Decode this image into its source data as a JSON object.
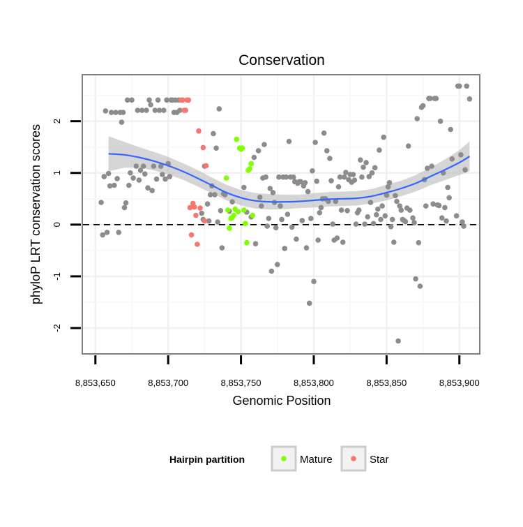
{
  "chart_data": {
    "type": "scatter",
    "title": "Conservation",
    "xlabel": "Genomic Position",
    "ylabel": "phyloP LRT conservation scores",
    "xlim": [
      8853641,
      8853914
    ],
    "ylim": [
      -2.5,
      2.9
    ],
    "x_ticks": [
      8853650,
      8853700,
      8853750,
      8853800,
      8853850,
      8853900
    ],
    "x_tick_labels": [
      "8,853,650",
      "8,853,700",
      "8,853,750",
      "8,853,800",
      "8,853,850",
      "8,853,900"
    ],
    "y_ticks": [
      -2,
      -1,
      0,
      1,
      2
    ],
    "y_tick_labels": [
      "-2",
      "-1",
      "0",
      "1",
      "2"
    ],
    "reference_line": {
      "y": 0,
      "style": "dashed"
    },
    "legend": {
      "title": "Hairpin partition",
      "position": "bottom",
      "entries": [
        {
          "label": "Mature",
          "color": "#7fff00"
        },
        {
          "label": "Star",
          "color": "#f8766d"
        }
      ]
    },
    "colors": {
      "other": "#8c8c8c",
      "mature": "#7fff00",
      "star": "#f8766d",
      "smooth": "#3366ff",
      "ribbon": "#bfbfbf"
    },
    "series": [
      {
        "name": "Other",
        "points": [
          [
            8853654,
            0.43
          ],
          [
            8853655,
            -0.2
          ],
          [
            8853656,
            0.93
          ],
          [
            8853657,
            2.2
          ],
          [
            8853658,
            -0.15
          ],
          [
            8853659,
            0.99
          ],
          [
            8853660,
            0.75
          ],
          [
            8853661,
            2.17
          ],
          [
            8853663,
            0.76
          ],
          [
            8853664,
            2.17
          ],
          [
            8853665,
            0.89
          ],
          [
            8853666,
            -0.15
          ],
          [
            8853667,
            2.17
          ],
          [
            8853668,
            1.98
          ],
          [
            8853669,
            2.17
          ],
          [
            8853670,
            0.33
          ],
          [
            8853671,
            0.42
          ],
          [
            8853672,
            2.41
          ],
          [
            8853673,
            0.76
          ],
          [
            8853674,
            1.0
          ],
          [
            8853675,
            2.41
          ],
          [
            8853676,
            0.9
          ],
          [
            8853678,
            1.13
          ],
          [
            8853679,
            2.21
          ],
          [
            8853680,
            0.86
          ],
          [
            8853681,
            1.05
          ],
          [
            8853682,
            2.21
          ],
          [
            8853683,
            1.13
          ],
          [
            8853684,
            0.98
          ],
          [
            8853685,
            2.21
          ],
          [
            8853686,
            0.71
          ],
          [
            8853687,
            2.41
          ],
          [
            8853688,
            2.32
          ],
          [
            8853689,
            0.66
          ],
          [
            8853690,
            1.13
          ],
          [
            8853691,
            2.21
          ],
          [
            8853692,
            0.88
          ],
          [
            8853693,
            2.41
          ],
          [
            8853694,
            2.21
          ],
          [
            8853695,
            1.13
          ],
          [
            8853696,
            0.97
          ],
          [
            8853697,
            2.21
          ],
          [
            8853698,
            0.88
          ],
          [
            8853699,
            2.41
          ],
          [
            8853700,
            1.18
          ],
          [
            8853701,
            0.93
          ],
          [
            8853702,
            2.41
          ],
          [
            8853703,
            2.41
          ],
          [
            8853704,
            2.17
          ],
          [
            8853705,
            2.41
          ],
          [
            8853706,
            2.17
          ],
          [
            8853707,
            2.41
          ],
          [
            8853708,
            2.21
          ],
          [
            8853723,
            0.22
          ],
          [
            8853724,
            0.1
          ],
          [
            8853725,
            1.13
          ],
          [
            8853727,
            0.4
          ],
          [
            8853728,
            0.07
          ],
          [
            8853729,
            0.58
          ],
          [
            8853730,
            0.75
          ],
          [
            8853731,
            1.76
          ],
          [
            8853732,
            0.58
          ],
          [
            8853733,
            1.48
          ],
          [
            8853734,
            0.05
          ],
          [
            8853735,
            2.24
          ],
          [
            8853736,
            0.27
          ],
          [
            8853737,
            -0.45
          ],
          [
            8853738,
            0.6
          ],
          [
            8853739,
            0.58
          ],
          [
            8853742,
            0.26
          ],
          [
            8853744,
            0.44
          ],
          [
            8853752,
            0.72
          ],
          [
            8853754,
            0.24
          ],
          [
            8853757,
            0.15
          ],
          [
            8853759,
            1.3
          ],
          [
            8853760,
            -0.37
          ],
          [
            8853762,
            1.43
          ],
          [
            8853763,
            0.53
          ],
          [
            8853764,
            0.36
          ],
          [
            8853765,
            0.9
          ],
          [
            8853766,
            1.55
          ],
          [
            8853767,
            0.92
          ],
          [
            8853768,
            -0.03
          ],
          [
            8853769,
            0.12
          ],
          [
            8853770,
            0.7
          ],
          [
            8853771,
            -0.9
          ],
          [
            8853772,
            0.62
          ],
          [
            8853773,
            0.43
          ],
          [
            8853774,
            -0.06
          ],
          [
            8853775,
            -0.77
          ],
          [
            8853776,
            0.92
          ],
          [
            8853777,
            0.36
          ],
          [
            8853778,
            0.1
          ],
          [
            8853779,
            0.92
          ],
          [
            8853780,
            -0.46
          ],
          [
            8853781,
            0.92
          ],
          [
            8853782,
            0.2
          ],
          [
            8853783,
            1.61
          ],
          [
            8853784,
            0.92
          ],
          [
            8853785,
            -0.05
          ],
          [
            8853786,
            0.92
          ],
          [
            8853787,
            0.83
          ],
          [
            8853788,
            -0.28
          ],
          [
            8853789,
            0.8
          ],
          [
            8853790,
            0.83
          ],
          [
            8853791,
            0.83
          ],
          [
            8853792,
            0.08
          ],
          [
            8853793,
            0.75
          ],
          [
            8853794,
            0.81
          ],
          [
            8853795,
            -0.45
          ],
          [
            8853796,
            0.64
          ],
          [
            8853797,
            -1.52
          ],
          [
            8853798,
            0.12
          ],
          [
            8853799,
            1.04
          ],
          [
            8853800,
            -1.1
          ],
          [
            8853801,
            1.59
          ],
          [
            8853802,
            0.84
          ],
          [
            8853803,
            -0.3
          ],
          [
            8853804,
            0.23
          ],
          [
            8853805,
            0.33
          ],
          [
            8853806,
            0.5
          ],
          [
            8853807,
            1.77
          ],
          [
            8853808,
            0.5
          ],
          [
            8853809,
            1.43
          ],
          [
            8853810,
            0.45
          ],
          [
            8853811,
            1.28
          ],
          [
            8853812,
            0.85
          ],
          [
            8853813,
            0.01
          ],
          [
            8853814,
            -0.3
          ],
          [
            8853815,
            0.45
          ],
          [
            8853816,
            -0.26
          ],
          [
            8853817,
            0.73
          ],
          [
            8853818,
            0.92
          ],
          [
            8853819,
            0.28
          ],
          [
            8853820,
            -0.34
          ],
          [
            8853821,
            0.92
          ],
          [
            8853822,
            1.01
          ],
          [
            8853823,
            0.27
          ],
          [
            8853824,
            0.87
          ],
          [
            8853825,
            0.97
          ],
          [
            8853826,
            0.82
          ],
          [
            8853827,
            0.97
          ],
          [
            8853828,
            0.86
          ],
          [
            8853829,
            0.01
          ],
          [
            8853830,
            0.23
          ],
          [
            8853831,
            0.28
          ],
          [
            8853832,
            1.25
          ],
          [
            8853833,
            0.92
          ],
          [
            8853834,
            1.11
          ],
          [
            8853835,
            0.01
          ],
          [
            8853836,
            1.2
          ],
          [
            8853837,
            0.15
          ],
          [
            8853838,
            0.93
          ],
          [
            8853839,
            0.43
          ],
          [
            8853840,
            1.0
          ],
          [
            8853841,
            0.02
          ],
          [
            8853842,
            1.1
          ],
          [
            8853843,
            0.19
          ],
          [
            8853844,
            0.3
          ],
          [
            8853845,
            1.44
          ],
          [
            8853846,
            0.1
          ],
          [
            8853847,
            0.36
          ],
          [
            8853848,
            1.69
          ],
          [
            8853849,
            0.17
          ],
          [
            8853850,
            0.57
          ],
          [
            8853851,
            0.73
          ],
          [
            8853852,
            0.81
          ],
          [
            8853853,
            -0.04
          ],
          [
            8853854,
            0.1
          ],
          [
            8853855,
            -0.34
          ],
          [
            8853856,
            0.56
          ],
          [
            8853857,
            0.45
          ],
          [
            8853858,
            -2.25
          ],
          [
            8853859,
            0.36
          ],
          [
            8853860,
            0.28
          ],
          [
            8853861,
            0.1
          ],
          [
            8853862,
            0.08
          ],
          [
            8853863,
            0.06
          ],
          [
            8853864,
            0.32
          ],
          [
            8853865,
            1.52
          ],
          [
            8853866,
            0.28
          ],
          [
            8853868,
            0.13
          ],
          [
            8853869,
            0.04
          ],
          [
            8853870,
            -1.05
          ],
          [
            8853871,
            2.05
          ],
          [
            8853872,
            -0.35
          ],
          [
            8853873,
            -1.19
          ],
          [
            8853874,
            2.27
          ],
          [
            8853875,
            2.3
          ],
          [
            8853876,
            0.87
          ],
          [
            8853877,
            0.36
          ],
          [
            8853878,
            1.09
          ],
          [
            8853879,
            2.44
          ],
          [
            8853880,
            2.44
          ],
          [
            8853881,
            1.13
          ],
          [
            8853882,
            0.4
          ],
          [
            8853883,
            2.44
          ],
          [
            8853884,
            2.44
          ],
          [
            8853885,
            0.38
          ],
          [
            8853886,
            0.37
          ],
          [
            8853887,
            2.0
          ],
          [
            8853888,
            0.13
          ],
          [
            8853889,
            1.0
          ],
          [
            8853890,
            0.33
          ],
          [
            8853891,
            0.07
          ],
          [
            8853892,
            0.72
          ],
          [
            8853893,
            0.52
          ],
          [
            8853894,
            1.84
          ],
          [
            8853895,
            1.27
          ],
          [
            8853898,
            0.17
          ],
          [
            8853899,
            2.68
          ],
          [
            8853900,
            2.68
          ],
          [
            8853901,
            1.35
          ],
          [
            8853902,
            0.05
          ],
          [
            8853903,
            -0.03
          ],
          [
            8853904,
            1.06
          ],
          [
            8853905,
            2.68
          ],
          [
            8853907,
            2.43
          ]
        ]
      },
      {
        "name": "Star",
        "points": [
          [
            8853709,
            2.41
          ],
          [
            8853710,
            2.41
          ],
          [
            8853711,
            2.21
          ],
          [
            8853712,
            2.21
          ],
          [
            8853713,
            2.41
          ],
          [
            8853714,
            2.41
          ],
          [
            8853715,
            0.33
          ],
          [
            8853716,
            -0.2
          ],
          [
            8853717,
            0.41
          ],
          [
            8853718,
            0.34
          ],
          [
            8853719,
            0.18
          ],
          [
            8853720,
            -0.38
          ],
          [
            8853721,
            1.81
          ],
          [
            8853722,
            0.32
          ],
          [
            8853724,
            1.49
          ],
          [
            8853725,
            0.07
          ],
          [
            8853726,
            1.14
          ]
        ]
      },
      {
        "name": "Mature",
        "points": [
          [
            8853740,
            0.9
          ],
          [
            8853741,
            0.28
          ],
          [
            8853742,
            -0.07
          ],
          [
            8853743,
            0.12
          ],
          [
            8853744,
            0.14
          ],
          [
            8853745,
            0.18
          ],
          [
            8853746,
            0.3
          ],
          [
            8853747,
            1.65
          ],
          [
            8853748,
            0.25
          ],
          [
            8853749,
            1.48
          ],
          [
            8853750,
            1.46
          ],
          [
            8853751,
            1.48
          ],
          [
            8853752,
            0.28
          ],
          [
            8853753,
            0.02
          ],
          [
            8853754,
            -0.35
          ],
          [
            8853755,
            1.05
          ],
          [
            8853756,
            1.08
          ],
          [
            8853757,
            1.18
          ],
          [
            8853758,
            0.18
          ]
        ]
      }
    ],
    "smooth": {
      "method": "loess",
      "x": [
        8853659,
        8853670,
        8853680,
        8853690,
        8853700,
        8853710,
        8853720,
        8853730,
        8853740,
        8853750,
        8853760,
        8853770,
        8853780,
        8853790,
        8853800,
        8853810,
        8853820,
        8853830,
        8853840,
        8853850,
        8853860,
        8853870,
        8853880,
        8853890,
        8853900,
        8853907
      ],
      "y": [
        1.37,
        1.35,
        1.3,
        1.23,
        1.14,
        1.03,
        0.9,
        0.76,
        0.62,
        0.52,
        0.46,
        0.44,
        0.44,
        0.45,
        0.47,
        0.49,
        0.5,
        0.51,
        0.55,
        0.62,
        0.7,
        0.8,
        0.93,
        1.06,
        1.2,
        1.32
      ],
      "lower": [
        1.03,
        1.1,
        1.1,
        1.05,
        0.97,
        0.87,
        0.74,
        0.61,
        0.47,
        0.37,
        0.31,
        0.29,
        0.3,
        0.32,
        0.33,
        0.35,
        0.36,
        0.37,
        0.41,
        0.47,
        0.55,
        0.64,
        0.76,
        0.86,
        0.96,
        1.03
      ],
      "upper": [
        1.71,
        1.6,
        1.5,
        1.41,
        1.31,
        1.19,
        1.06,
        0.91,
        0.77,
        0.67,
        0.61,
        0.59,
        0.58,
        0.58,
        0.61,
        0.63,
        0.64,
        0.65,
        0.69,
        0.77,
        0.85,
        0.96,
        1.1,
        1.26,
        1.44,
        1.61
      ]
    }
  }
}
